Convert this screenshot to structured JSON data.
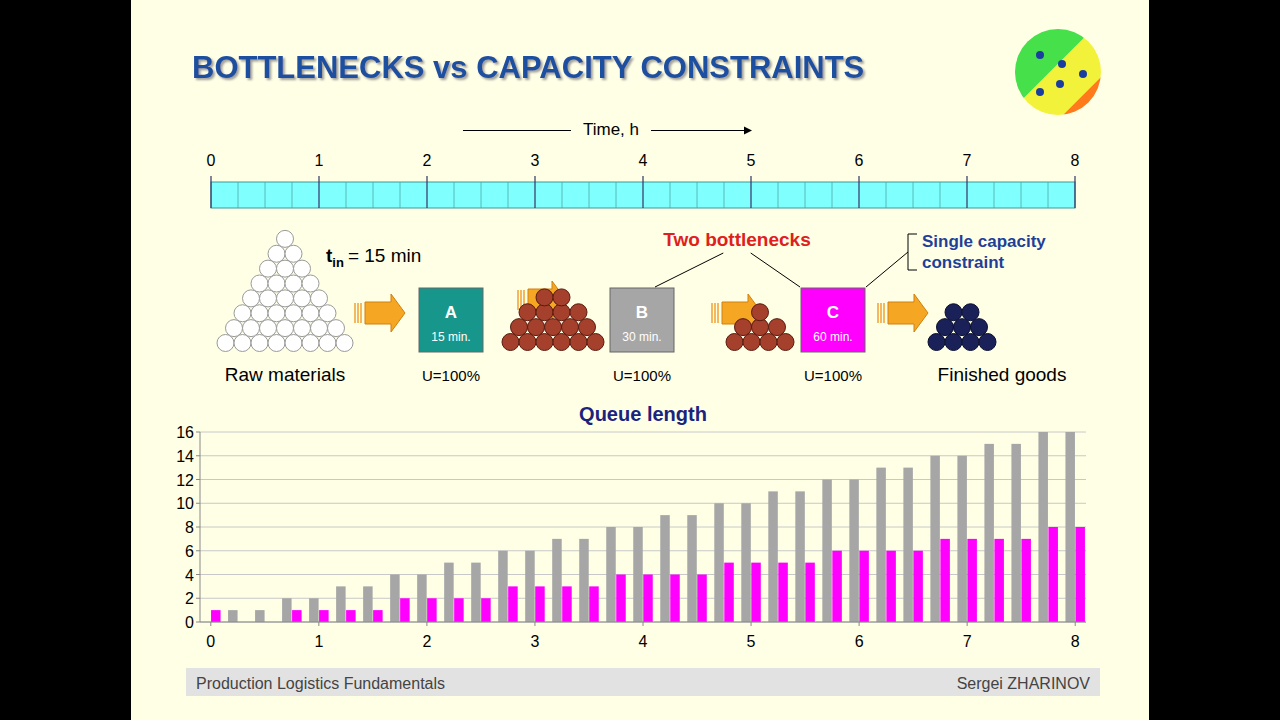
{
  "slide": {
    "title": "BOTTLENECKS vs CAPACITY CONSTRAINTS",
    "footer_left": "Production Logistics Fundamentals",
    "footer_right": "Sergei ZHARINOV"
  },
  "timeline": {
    "label": "Time, h",
    "xlim": [
      0,
      8
    ],
    "ticks": [
      0,
      1,
      2,
      3,
      4,
      5,
      6,
      7,
      8
    ]
  },
  "diagram": {
    "input": {
      "symbol": "t",
      "subscript": "in",
      "text": "= 15 min"
    },
    "raw": "Raw materials",
    "finished": "Finished goods",
    "stations": [
      {
        "label": "A",
        "time": "15 min.",
        "utilization": "U=100%"
      },
      {
        "label": "B",
        "time": "30 min.",
        "utilization": "U=100%"
      },
      {
        "label": "C",
        "time": "60 min.",
        "utilization": "U=100%"
      }
    ],
    "bottlenecks": "Two bottlenecks",
    "constraint": "Single capacity constraint"
  },
  "chart_data": {
    "type": "bar",
    "title": "Queue length",
    "x": [
      0,
      0.25,
      0.5,
      0.75,
      1,
      1.25,
      1.5,
      1.75,
      2,
      2.25,
      2.5,
      2.75,
      3,
      3.25,
      3.5,
      3.75,
      4,
      4.25,
      4.5,
      4.75,
      5,
      5.25,
      5.5,
      5.75,
      6,
      6.25,
      6.5,
      6.75,
      7,
      7.25,
      7.5,
      7.75,
      8
    ],
    "series": [
      {
        "color": "#a6a6a6",
        "values": [
          0,
          1,
          1,
          2,
          2,
          3,
          3,
          4,
          4,
          5,
          5,
          6,
          6,
          7,
          7,
          8,
          8,
          9,
          9,
          10,
          10,
          11,
          11,
          12,
          12,
          13,
          13,
          14,
          14,
          15,
          15,
          16,
          16
        ]
      },
      {
        "color": "#ff00ff",
        "values": [
          1,
          0,
          0,
          1,
          1,
          1,
          1,
          2,
          2,
          2,
          2,
          3,
          3,
          3,
          3,
          4,
          4,
          4,
          4,
          5,
          5,
          5,
          5,
          6,
          6,
          6,
          6,
          7,
          7,
          7,
          7,
          8,
          8
        ]
      }
    ],
    "xlim": [
      -0.1,
      8.1
    ],
    "xticks": [
      0,
      1,
      2,
      3,
      4,
      5,
      6,
      7,
      8
    ],
    "ylim": [
      0,
      16
    ],
    "yticks": [
      0,
      2,
      4,
      6,
      8,
      10,
      12,
      14,
      16
    ],
    "grid": true
  }
}
